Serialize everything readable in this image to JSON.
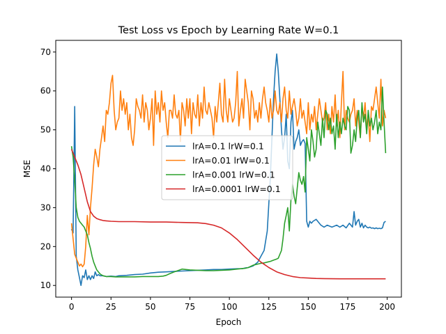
{
  "chart_data": {
    "type": "line",
    "title": "Test Loss vs Epoch by Learning Rate W=0.1",
    "xlabel": "Epoch",
    "ylabel": "MSE",
    "xlim": [
      -10,
      209
    ],
    "ylim": [
      7,
      73
    ],
    "xticks": [
      0,
      25,
      50,
      75,
      100,
      125,
      150,
      175,
      200
    ],
    "yticks": [
      10,
      20,
      30,
      40,
      50,
      60,
      70
    ],
    "grid": false,
    "legend_position": "center-right",
    "series": [
      {
        "name": "lrA=0.1 lrW=0.1",
        "color": "#1f77b4",
        "x": [
          0,
          1,
          2,
          3,
          4,
          5,
          6,
          7,
          8,
          9,
          10,
          11,
          12,
          13,
          14,
          15,
          16,
          17,
          18,
          20,
          22,
          25,
          28,
          30,
          35,
          40,
          45,
          50,
          55,
          60,
          65,
          70,
          75,
          80,
          85,
          90,
          95,
          100,
          105,
          108,
          110,
          112,
          115,
          118,
          120,
          122,
          124,
          126,
          128,
          129,
          130,
          131,
          132,
          133,
          134,
          135,
          136,
          137,
          138,
          139,
          140,
          141,
          142,
          143,
          144,
          145,
          146,
          147,
          148,
          149,
          150,
          151,
          152,
          153,
          155,
          158,
          160,
          162,
          165,
          168,
          170,
          172,
          174,
          176,
          178,
          179,
          180,
          181,
          182,
          183,
          184,
          185,
          186,
          187,
          188,
          189,
          190,
          191,
          192,
          193,
          194,
          195,
          196,
          197,
          198,
          199
        ],
        "y": [
          24.5,
          23.5,
          56,
          17.5,
          14,
          12,
          10,
          12.5,
          12,
          14,
          11.5,
          12.5,
          11.5,
          12.5,
          11.8,
          13.5,
          12.5,
          12.8,
          12.5,
          12.5,
          12.3,
          12.4,
          12.3,
          12.5,
          12.6,
          12.8,
          12.9,
          13.2,
          13.4,
          13.5,
          13.6,
          13.7,
          13.8,
          13.9,
          14,
          14.1,
          14.1,
          14.2,
          14.3,
          14.3,
          14.5,
          14.6,
          15,
          16,
          17.5,
          19,
          24,
          38,
          58,
          65,
          69.5,
          65,
          58,
          50,
          45,
          48,
          54,
          42,
          40,
          52,
          55,
          45,
          47,
          48,
          50,
          46,
          47,
          47.5,
          46.5,
          26.5,
          25,
          26.5,
          26,
          26.5,
          27,
          25.5,
          25,
          25.5,
          25,
          25.5,
          25,
          25.5,
          24.8,
          26,
          25,
          29,
          25.5,
          26.5,
          27,
          25,
          26,
          24.8,
          25.5,
          25,
          24.8,
          25,
          24.7,
          24.8,
          24.6,
          24.8,
          24.6,
          24.7,
          24.6,
          24.8,
          26.2,
          26.5
        ]
      },
      {
        "name": "lrA=0.01 lrW=0.1",
        "color": "#ff7f0e",
        "x": [
          0,
          1,
          2,
          3,
          4,
          5,
          6,
          7,
          8,
          9,
          10,
          11,
          12,
          13,
          14,
          15,
          16,
          17,
          18,
          19,
          20,
          21,
          22,
          23,
          24,
          25,
          26,
          27,
          28,
          29,
          30,
          31,
          32,
          33,
          34,
          35,
          36,
          37,
          38,
          39,
          40,
          41,
          42,
          43,
          44,
          45,
          46,
          47,
          48,
          49,
          50,
          51,
          52,
          53,
          54,
          55,
          56,
          57,
          58,
          59,
          60,
          61,
          62,
          63,
          64,
          65,
          66,
          67,
          68,
          69,
          70,
          71,
          72,
          73,
          74,
          75,
          76,
          77,
          78,
          79,
          80,
          81,
          82,
          83,
          84,
          85,
          86,
          87,
          88,
          89,
          90,
          91,
          92,
          93,
          94,
          95,
          96,
          97,
          98,
          99,
          100,
          101,
          102,
          103,
          104,
          105,
          106,
          107,
          108,
          109,
          110,
          111,
          112,
          113,
          114,
          115,
          116,
          117,
          118,
          119,
          120,
          121,
          122,
          123,
          124,
          125,
          126,
          127,
          128,
          129,
          130,
          131,
          132,
          133,
          134,
          135,
          136,
          137,
          138,
          139,
          140,
          141,
          142,
          143,
          144,
          145,
          146,
          147,
          148,
          149,
          150,
          151,
          152,
          153,
          154,
          155,
          156,
          157,
          158,
          159,
          160,
          161,
          162,
          163,
          164,
          165,
          166,
          167,
          168,
          169,
          170,
          171,
          172,
          173,
          174,
          175,
          176,
          177,
          178,
          179,
          180,
          181,
          182,
          183,
          184,
          185,
          186,
          187,
          188,
          189,
          190,
          191,
          192,
          193,
          194,
          195,
          196,
          197,
          198,
          199
        ],
        "y": [
          26,
          22,
          18,
          17,
          16,
          15,
          15.5,
          14.8,
          15.5,
          20,
          28,
          23,
          30,
          35,
          41,
          45,
          43,
          40.5,
          45,
          48,
          51,
          47,
          55,
          54,
          57,
          62,
          64,
          55,
          50,
          52,
          53,
          60,
          55,
          58,
          54,
          57,
          50,
          54,
          48,
          46,
          50,
          58,
          56,
          55,
          53,
          59,
          52,
          57,
          55,
          50,
          53,
          58,
          46,
          60,
          54,
          57,
          52,
          60,
          55,
          57,
          52,
          48,
          55,
          55,
          53,
          59,
          54,
          53,
          55,
          47,
          57,
          55,
          51,
          58,
          53,
          58,
          49,
          57,
          54,
          53,
          59,
          51,
          57,
          53,
          61,
          55,
          54,
          57,
          55,
          53,
          48,
          56,
          52,
          57,
          62,
          54,
          52,
          63,
          55,
          52,
          58,
          55,
          52,
          53,
          57,
          65,
          51,
          55,
          58,
          53,
          63,
          60,
          57,
          50,
          60,
          58,
          53,
          55,
          52,
          57,
          53,
          58,
          61,
          57,
          55,
          52,
          58,
          53,
          55,
          60,
          55,
          54,
          57,
          52,
          58,
          61,
          55,
          53,
          60,
          54,
          56,
          58,
          55,
          51,
          53,
          58,
          53,
          55,
          52,
          49,
          57,
          50,
          54,
          52,
          56,
          50,
          54,
          58,
          55,
          52,
          53,
          57,
          50,
          54,
          49,
          56,
          52,
          59,
          51,
          55,
          48,
          57,
          65,
          50,
          55,
          53,
          52,
          54,
          55,
          58,
          51,
          55,
          52,
          48,
          56,
          53,
          57,
          50,
          54,
          47,
          56,
          55,
          58,
          61,
          57,
          53,
          63,
          51,
          55,
          53
        ]
      },
      {
        "name": "lrA=0.001 lrW=0.1",
        "color": "#2ca02c",
        "x": [
          0,
          1,
          2,
          3,
          4,
          5,
          6,
          7,
          8,
          9,
          10,
          11,
          12,
          13,
          14,
          15,
          16,
          17,
          18,
          19,
          20,
          22,
          25,
          28,
          30,
          35,
          40,
          45,
          50,
          55,
          58,
          60,
          62,
          65,
          68,
          70,
          75,
          80,
          85,
          90,
          95,
          100,
          105,
          110,
          112,
          115,
          118,
          120,
          122,
          124,
          126,
          128,
          130,
          131,
          132,
          133,
          134,
          135,
          136,
          137,
          138,
          139,
          140,
          141,
          142,
          143,
          144,
          145,
          146,
          147,
          148,
          149,
          150,
          151,
          152,
          153,
          154,
          155,
          156,
          157,
          158,
          159,
          160,
          161,
          162,
          163,
          164,
          165,
          166,
          167,
          168,
          169,
          170,
          171,
          172,
          173,
          174,
          175,
          176,
          177,
          178,
          179,
          180,
          181,
          182,
          183,
          184,
          185,
          186,
          187,
          188,
          189,
          190,
          191,
          192,
          193,
          194,
          195,
          196,
          197,
          198,
          199
        ],
        "y": [
          45.8,
          43,
          37,
          30,
          27.5,
          26.5,
          26,
          25.5,
          25,
          24,
          23,
          21,
          19.5,
          17.5,
          16,
          15,
          14,
          13.5,
          13,
          12.7,
          12.5,
          12.3,
          12.3,
          12.2,
          12.2,
          12.2,
          12.2,
          12.3,
          12.3,
          12.3,
          12.4,
          12.6,
          13,
          13.5,
          13.9,
          14.2,
          14,
          13.9,
          13.8,
          13.8,
          13.9,
          14,
          14.2,
          14.4,
          14.6,
          15.2,
          15.5,
          15.7,
          15.8,
          16,
          16.2,
          16.5,
          16.8,
          17,
          18,
          19,
          22,
          26,
          28,
          30,
          24,
          32,
          36,
          33,
          31,
          35,
          39,
          37,
          36,
          38,
          34,
          48,
          45,
          42,
          50,
          47,
          43,
          45,
          52,
          49,
          46,
          53,
          48,
          55,
          54,
          50,
          53,
          49,
          51,
          45,
          54,
          48,
          52,
          49,
          53,
          51,
          50,
          56,
          55,
          44,
          46,
          50,
          47,
          53,
          55,
          48,
          57,
          52,
          54,
          49,
          55,
          51,
          53,
          50,
          52,
          55,
          49,
          52,
          50,
          61,
          52,
          44
        ]
      },
      {
        "name": "lrA=0.0001 lrW=0.1",
        "color": "#d62728",
        "x": [
          0,
          2,
          4,
          6,
          8,
          10,
          12,
          14,
          16,
          18,
          20,
          22,
          25,
          30,
          40,
          50,
          60,
          70,
          80,
          85,
          90,
          95,
          100,
          105,
          110,
          115,
          120,
          125,
          130,
          135,
          140,
          145,
          150,
          155,
          160,
          170,
          180,
          190,
          199
        ],
        "y": [
          45,
          43,
          41,
          38.5,
          35,
          31.5,
          29,
          27.8,
          27.2,
          26.9,
          26.7,
          26.6,
          26.5,
          26.4,
          26.4,
          26.3,
          26.3,
          26.2,
          26.1,
          25.9,
          25.5,
          24.8,
          23.5,
          21.8,
          19.8,
          17.8,
          16,
          14.6,
          13.5,
          12.8,
          12.3,
          12,
          11.9,
          11.8,
          11.75,
          11.7,
          11.7,
          11.7,
          11.7
        ]
      }
    ]
  }
}
